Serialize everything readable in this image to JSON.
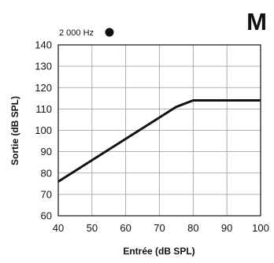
{
  "badge": {
    "letter": "M"
  },
  "chart_data": {
    "type": "line",
    "title": "",
    "xlabel": "Entrée (dB SPL)",
    "ylabel": "Sortie (dB SPL)",
    "xlim": [
      40,
      100
    ],
    "ylim": [
      60,
      140
    ],
    "x_ticks": [
      40,
      50,
      60,
      70,
      80,
      90,
      100
    ],
    "y_ticks": [
      60,
      70,
      80,
      90,
      100,
      110,
      120,
      130,
      140
    ],
    "x_tick_labels": [
      "40",
      "50",
      "60",
      "70",
      "80",
      "90",
      "100"
    ],
    "y_tick_labels": [
      "60",
      "70",
      "80",
      "90",
      "100",
      "110",
      "120",
      "130",
      "140"
    ],
    "grid": true,
    "legend_position": "top-left",
    "series": [
      {
        "name": "2 000 Hz",
        "marker": "filled-circle",
        "color": "#111111",
        "x": [
          40,
          70,
          75,
          80,
          100
        ],
        "y": [
          76,
          106,
          111,
          114,
          114
        ]
      }
    ]
  }
}
